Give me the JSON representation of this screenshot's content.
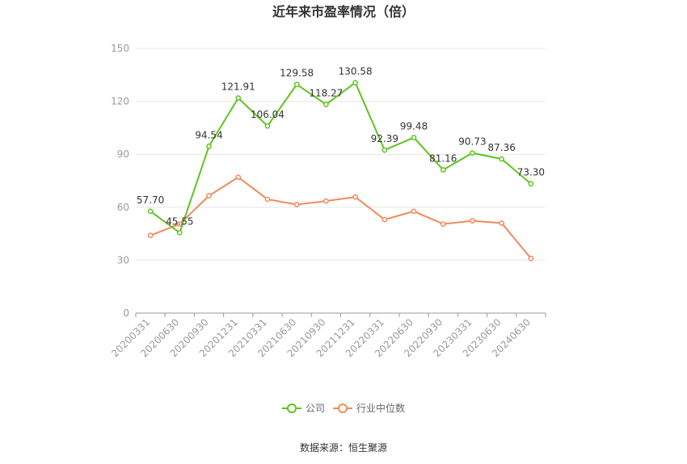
{
  "chart_data": {
    "type": "line",
    "title": "近年来市盈率情况（倍）",
    "xlabel": "",
    "ylabel": "",
    "ylim": [
      0,
      150
    ],
    "yticks": [
      0,
      30,
      60,
      90,
      120,
      150
    ],
    "grid": true,
    "legend_position": "bottom",
    "categories": [
      "20200331",
      "20200630",
      "20200930",
      "20201231",
      "20210331",
      "20210630",
      "20210930",
      "20211231",
      "20220331",
      "20220630",
      "20220930",
      "20230331",
      "20230630",
      "20240630"
    ],
    "series": [
      {
        "name": "公司",
        "color": "#5ec41f",
        "values": [
          57.7,
          45.55,
          94.54,
          121.91,
          106.04,
          129.58,
          118.27,
          130.58,
          92.39,
          99.48,
          81.16,
          90.73,
          87.36,
          73.3
        ],
        "labels": [
          "57.70",
          "45.55",
          "94.54",
          "121.91",
          "106.04",
          "129.58",
          "118.27",
          "130.58",
          "92.39",
          "99.48",
          "81.16",
          "90.73",
          "87.36",
          "73.30"
        ]
      },
      {
        "name": "行业中位数",
        "color": "#f08a5d",
        "values": [
          44,
          50.5,
          66.5,
          77,
          64.5,
          61.5,
          63.5,
          65.8,
          53,
          57.7,
          50.5,
          52.3,
          51,
          31
        ]
      }
    ],
    "source": "数据来源：恒生聚源"
  }
}
